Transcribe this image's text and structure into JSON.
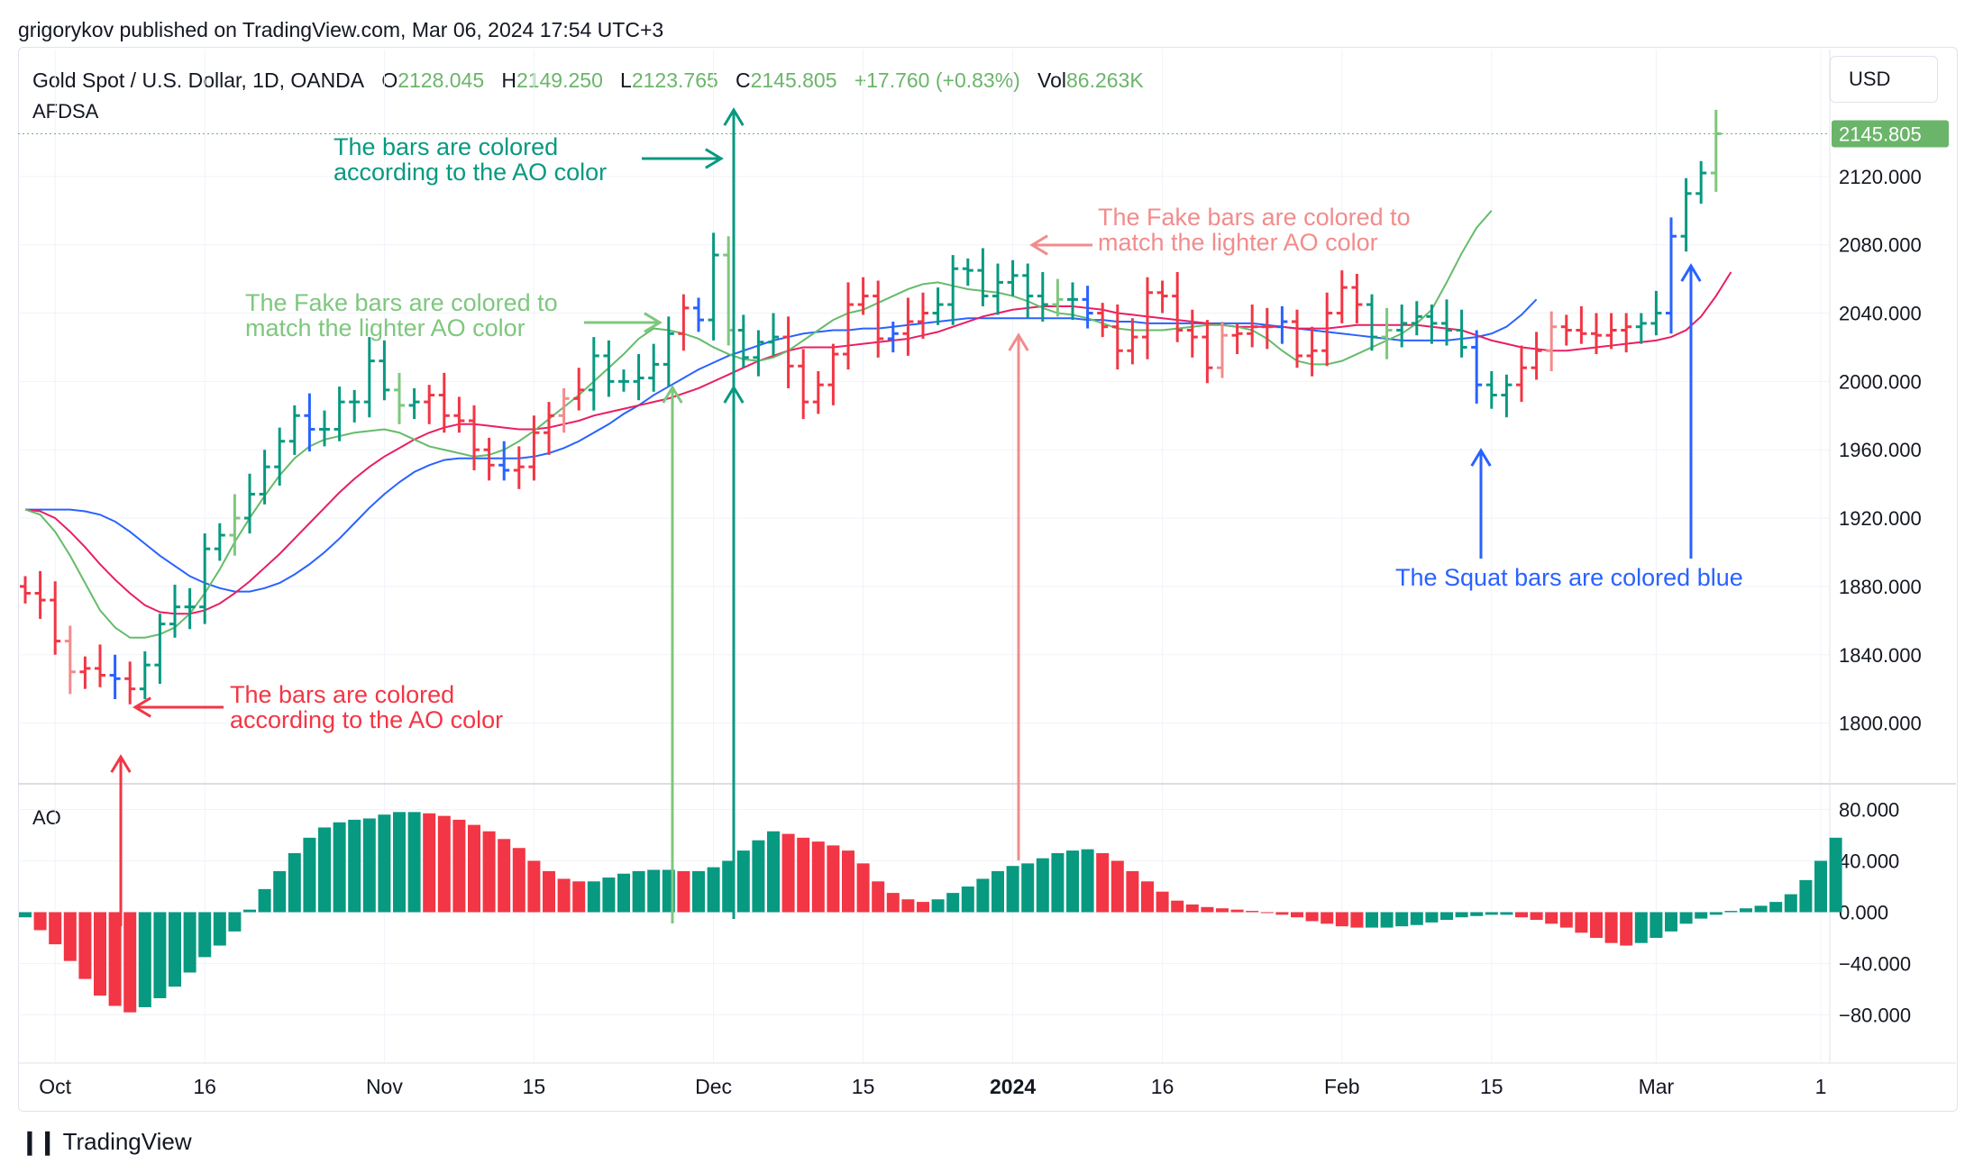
{
  "header": {
    "published": "grigorykov published on TradingView.com, Mar 06, 2024 17:54 UTC+3",
    "symbol": "Gold Spot / U.S. Dollar, 1D, OANDA",
    "o_label": "O",
    "o_value": "2128.045",
    "h_label": "H",
    "h_value": "2149.250",
    "l_label": "L",
    "l_value": "2123.765",
    "c_label": "C",
    "c_value": "2145.805",
    "change": "+17.760 (+0.83%)",
    "vol_label": "Vol",
    "vol_value": "86.263K",
    "indicator": "AFDSA",
    "ao_label": "AO",
    "currency": "USD",
    "last_price": "2145.805",
    "brand": "TradingView"
  },
  "colors": {
    "up": "#089981",
    "down": "#f23645",
    "fake_up": "#7ec77e",
    "fake_down": "#f28c8c",
    "squat": "#2962ff",
    "jaw": "#2962ff",
    "teeth": "#e91e63",
    "lips": "#66bb6a",
    "price_tag": "#6bb56a"
  },
  "annotations": [
    {
      "id": "ao-up",
      "lines": [
        "The bars are colored",
        "according to the AO color"
      ],
      "color": "#089981"
    },
    {
      "id": "fake-up",
      "lines": [
        "The Fake bars are colored to",
        "match the lighter AO color"
      ],
      "color": "#7ec77e"
    },
    {
      "id": "fake-down",
      "lines": [
        "The Fake bars are colored to",
        "match the lighter AO color"
      ],
      "color": "#f28c8c"
    },
    {
      "id": "ao-down",
      "lines": [
        "The bars are colored",
        "according to the AO color"
      ],
      "color": "#f23645"
    },
    {
      "id": "squat",
      "lines": [
        "The Squat bars are colored blue"
      ],
      "color": "#2962ff"
    }
  ],
  "chart_data": [
    {
      "type": "ohlc",
      "title": "Gold Spot / U.S. Dollar, 1D, OANDA",
      "ylim": [
        1775,
        2160
      ],
      "y_ticks": [
        1800,
        1840,
        1880,
        1920,
        1960,
        2000,
        2040,
        2080,
        2120
      ],
      "y_tick_labels": [
        "1800.000",
        "1840.000",
        "1880.000",
        "1920.000",
        "1960.000",
        "2000.000",
        "2040.000",
        "2080.000",
        "2120.000"
      ],
      "x_ticks": [
        {
          "i": 2,
          "label": "Oct"
        },
        {
          "i": 12,
          "label": "16"
        },
        {
          "i": 24,
          "label": "Nov"
        },
        {
          "i": 34,
          "label": "15"
        },
        {
          "i": 46,
          "label": "Dec"
        },
        {
          "i": 56,
          "label": "15"
        },
        {
          "i": 66,
          "label": "2024",
          "bold": true
        },
        {
          "i": 76,
          "label": "16"
        },
        {
          "i": 88,
          "label": "Feb"
        },
        {
          "i": 98,
          "label": "15"
        },
        {
          "i": 109,
          "label": "Mar"
        },
        {
          "i": 120,
          "label": "1"
        }
      ],
      "candles_close": [
        1876,
        1872,
        1848,
        1830,
        1832,
        1828,
        1826,
        1820,
        1834,
        1858,
        1868,
        1868,
        1902,
        1910,
        1920,
        1934,
        1950,
        1965,
        1980,
        1972,
        1972,
        1988,
        1988,
        2012,
        1995,
        1986,
        1988,
        1992,
        1980,
        1977,
        1960,
        1951,
        1948,
        1950,
        1970,
        1980,
        1990,
        1995,
        2015,
        2000,
        2000,
        2002,
        2010,
        2028,
        2043,
        2036,
        2074,
        2030,
        2014,
        2023,
        2026,
        2009,
        1988,
        1998,
        2016,
        2045,
        2050,
        2025,
        2028,
        2035,
        2040,
        2045,
        2066,
        2065,
        2050,
        2058,
        2062,
        2050,
        2045,
        2048,
        2048,
        2040,
        2032,
        2018,
        2026,
        2052,
        2050,
        2030,
        2026,
        2008,
        2027,
        2028,
        2032,
        2032,
        2035,
        2015,
        2018,
        2040,
        2055,
        2045,
        2026,
        2030,
        2034,
        2038,
        2034,
        2030,
        2020,
        1998,
        1992,
        1998,
        2008,
        2018,
        2032,
        2030,
        2028,
        2027,
        2030,
        2032,
        2034,
        2040,
        2085,
        2110,
        2122,
        2145
      ],
      "teeth": [
        1925,
        1924,
        1920,
        1912,
        1903,
        1893,
        1884,
        1876,
        1869,
        1865,
        1864,
        1864,
        1866,
        1870,
        1876,
        1883,
        1891,
        1899,
        1908,
        1917,
        1926,
        1935,
        1943,
        1950,
        1956,
        1961,
        1966,
        1970,
        1973,
        1975,
        1975,
        1974,
        1973,
        1972,
        1972,
        1973,
        1975,
        1977,
        1980,
        1982,
        1984,
        1986,
        1988,
        1990,
        1993,
        1996,
        2000,
        2004,
        2008,
        2012,
        2015,
        2018,
        2020,
        2020,
        2020,
        2021,
        2022,
        2023,
        2024,
        2025,
        2027,
        2029,
        2032,
        2035,
        2038,
        2040,
        2042,
        2043,
        2044,
        2044,
        2044,
        2043,
        2042,
        2040,
        2039,
        2038,
        2037,
        2036,
        2035,
        2034,
        2033,
        2032,
        2032,
        2032,
        2032,
        2031,
        2031,
        2031,
        2032,
        2033,
        2033,
        2033,
        2033,
        2033,
        2032,
        2031,
        2030,
        2027,
        2024,
        2022,
        2020,
        2019,
        2018,
        2018,
        2019,
        2020,
        2021,
        2022,
        2023,
        2024,
        2026,
        2030,
        2038,
        2050,
        2064
      ],
      "lips": [
        1925,
        1922,
        1912,
        1898,
        1882,
        1866,
        1856,
        1850,
        1850,
        1852,
        1856,
        1864,
        1876,
        1890,
        1906,
        1920,
        1933,
        1945,
        1955,
        1962,
        1966,
        1968,
        1970,
        1971,
        1972,
        1970,
        1966,
        1962,
        1960,
        1958,
        1956,
        1957,
        1960,
        1965,
        1971,
        1978,
        1985,
        1992,
        2000,
        2008,
        2016,
        2025,
        2031,
        2030,
        2028,
        2025,
        2020,
        2016,
        2013,
        2012,
        2014,
        2018,
        2024,
        2030,
        2036,
        2040,
        2042,
        2046,
        2050,
        2054,
        2057,
        2058,
        2056,
        2054,
        2053,
        2052,
        2050,
        2047,
        2043,
        2040,
        2039,
        2037,
        2034,
        2031,
        2030,
        2030,
        2030,
        2031,
        2032,
        2033,
        2033,
        2032,
        2030,
        2025,
        2018,
        2012,
        2010,
        2010,
        2012,
        2016,
        2020,
        2024,
        2028,
        2034,
        2042,
        2058,
        2075,
        2090,
        2100
      ],
      "jaw": [
        1925,
        1925,
        1925,
        1925,
        1924,
        1922,
        1918,
        1912,
        1905,
        1898,
        1892,
        1886,
        1882,
        1879,
        1877,
        1877,
        1879,
        1882,
        1887,
        1893,
        1900,
        1908,
        1917,
        1926,
        1934,
        1941,
        1947,
        1951,
        1954,
        1955,
        1955,
        1955,
        1955,
        1955,
        1956,
        1958,
        1961,
        1965,
        1970,
        1975,
        1981,
        1986,
        1992,
        1997,
        2002,
        2007,
        2011,
        2015,
        2018,
        2021,
        2024,
        2026,
        2028,
        2029,
        2030,
        2030,
        2031,
        2031,
        2032,
        2033,
        2034,
        2035,
        2036,
        2037,
        2037,
        2037,
        2037,
        2037,
        2037,
        2037,
        2037,
        2036,
        2036,
        2035,
        2035,
        2034,
        2034,
        2034,
        2034,
        2034,
        2034,
        2034,
        2034,
        2033,
        2032,
        2031,
        2030,
        2029,
        2028,
        2027,
        2026,
        2025,
        2024,
        2024,
        2024,
        2024,
        2025,
        2026,
        2028,
        2032,
        2039,
        2048
      ]
    },
    {
      "type": "bar",
      "title": "AO",
      "ylim": [
        -100,
        100
      ],
      "y_ticks": [
        80,
        40,
        0,
        -40,
        -80
      ],
      "y_tick_labels": [
        "80.000",
        "40.000",
        "0.000",
        "−40.000",
        "−80.000"
      ],
      "values": [
        -4,
        -14,
        -25,
        -38,
        -52,
        -65,
        -73,
        -78,
        -74,
        -67,
        -58,
        -47,
        -35,
        -26,
        -15,
        2,
        18,
        32,
        46,
        58,
        66,
        70,
        72,
        73,
        76,
        78,
        78,
        77,
        75,
        72,
        68,
        63,
        57,
        50,
        40,
        32,
        26,
        24,
        24,
        27,
        30,
        32,
        33,
        33,
        32,
        32,
        35,
        40,
        48,
        56,
        63,
        61,
        58,
        55,
        52,
        48,
        38,
        24,
        15,
        10,
        8,
        10,
        15,
        20,
        26,
        32,
        36,
        38,
        42,
        46,
        48,
        49,
        46,
        40,
        32,
        24,
        16,
        9,
        6,
        4,
        3,
        2,
        1,
        0,
        -2,
        -4,
        -7,
        -9,
        -11,
        -12,
        -12,
        -12,
        -11,
        -10,
        -8,
        -6,
        -4,
        -3,
        -2,
        -2,
        -4,
        -6,
        -9,
        -12,
        -16,
        -20,
        -24,
        -26,
        -24,
        -20,
        -15,
        -9,
        -5,
        -2,
        1,
        3,
        5,
        8,
        14,
        25,
        40,
        58
      ]
    }
  ]
}
